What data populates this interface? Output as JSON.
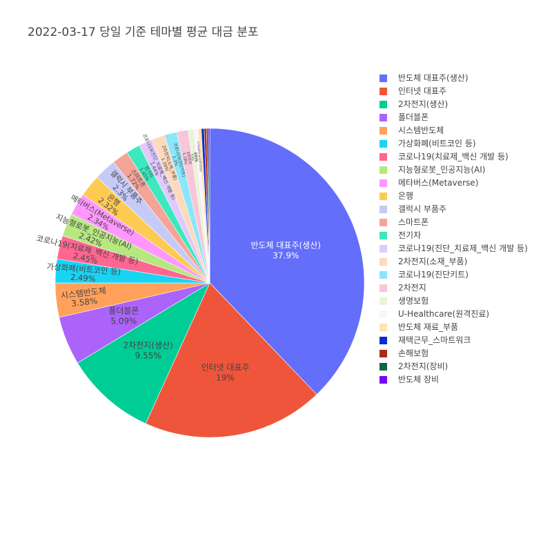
{
  "chart_data": {
    "type": "pie",
    "title": "2022-03-17 당일 기준 테마별 평균 대금 분포",
    "slices": [
      {
        "label": "반도체 대표주(생산)",
        "value": 37.9,
        "color": "#636efa",
        "shown_text": "37.9%"
      },
      {
        "label": "인터넷 대표주",
        "value": 19.0,
        "color": "#ef553b",
        "shown_text": "19%"
      },
      {
        "label": "2차전지(생산)",
        "value": 9.55,
        "color": "#00cc96",
        "shown_text": "9.55%"
      },
      {
        "label": "폴더블폰",
        "value": 5.09,
        "color": "#ab63fa",
        "shown_text": "5.09%"
      },
      {
        "label": "시스템반도체",
        "value": 3.58,
        "color": "#ffa15a",
        "shown_text": "3.58%"
      },
      {
        "label": "가상화폐(비트코인 등)",
        "value": 2.49,
        "color": "#19d3f3",
        "shown_text": "2.49%"
      },
      {
        "label": "코로나19(치료제_백신 개발 등)",
        "value": 2.45,
        "color": "#ff6692",
        "shown_text": "2.45%"
      },
      {
        "label": "지능형로봇_인공지능(AI)",
        "value": 2.42,
        "color": "#b6e880",
        "shown_text": "2.42%"
      },
      {
        "label": "메타버스(Metaverse)",
        "value": 2.34,
        "color": "#ff97ff",
        "shown_text": "2.34%"
      },
      {
        "label": "은행",
        "value": 2.32,
        "color": "#fecb52",
        "shown_text": "2.32%"
      },
      {
        "label": "갤럭시 부품주",
        "value": 2.3,
        "color": "#c6caf7",
        "shown_text": "2.3%"
      },
      {
        "label": "스마트폰",
        "value": 1.72,
        "color": "#f4a598",
        "shown_text": "1.72%"
      },
      {
        "label": "전기차",
        "value": 1.45,
        "color": "#3ce8bd",
        "shown_text": "1.45%"
      },
      {
        "label": "코로나19(진단_치료제_백신 개발 등)",
        "value": 1.44,
        "color": "#dfc9fd",
        "shown_text": "1.44%"
      },
      {
        "label": "2차전지(소재_부품)",
        "value": 1.39,
        "color": "#fdd9bd",
        "shown_text": "1.39%"
      },
      {
        "label": "코로나19(진단키트)",
        "value": 1.3,
        "color": "#8ce6f9",
        "shown_text": "1.3%"
      },
      {
        "label": "2차전지",
        "value": 1.18,
        "color": "#f9c5d8",
        "shown_text": "1.18%"
      },
      {
        "label": "생명보험",
        "value": 0.6,
        "color": "#e6f5d6",
        "shown_text": "0.6%"
      },
      {
        "label": "U-Healthcare(원격진료)",
        "value": 0.42,
        "color": "#fef3fe",
        "shown_text": "0.42%"
      },
      {
        "label": "반도체 재료_부품",
        "value": 0.35,
        "color": "#fde4b2",
        "shown_text": ""
      },
      {
        "label": "재택근무_스마트워크",
        "value": 0.3,
        "color": "#0d2ad6",
        "shown_text": ""
      },
      {
        "label": "손해보험",
        "value": 0.25,
        "color": "#ab2b11",
        "shown_text": ""
      },
      {
        "label": "2차전지(장비)",
        "value": 0.18,
        "color": "#0f6449",
        "shown_text": ""
      },
      {
        "label": "반도체 장비",
        "value": 0.15,
        "color": "#7209f5",
        "shown_text": ""
      }
    ],
    "legend_position": "right",
    "start": "top-center",
    "direction": "clockwise"
  }
}
